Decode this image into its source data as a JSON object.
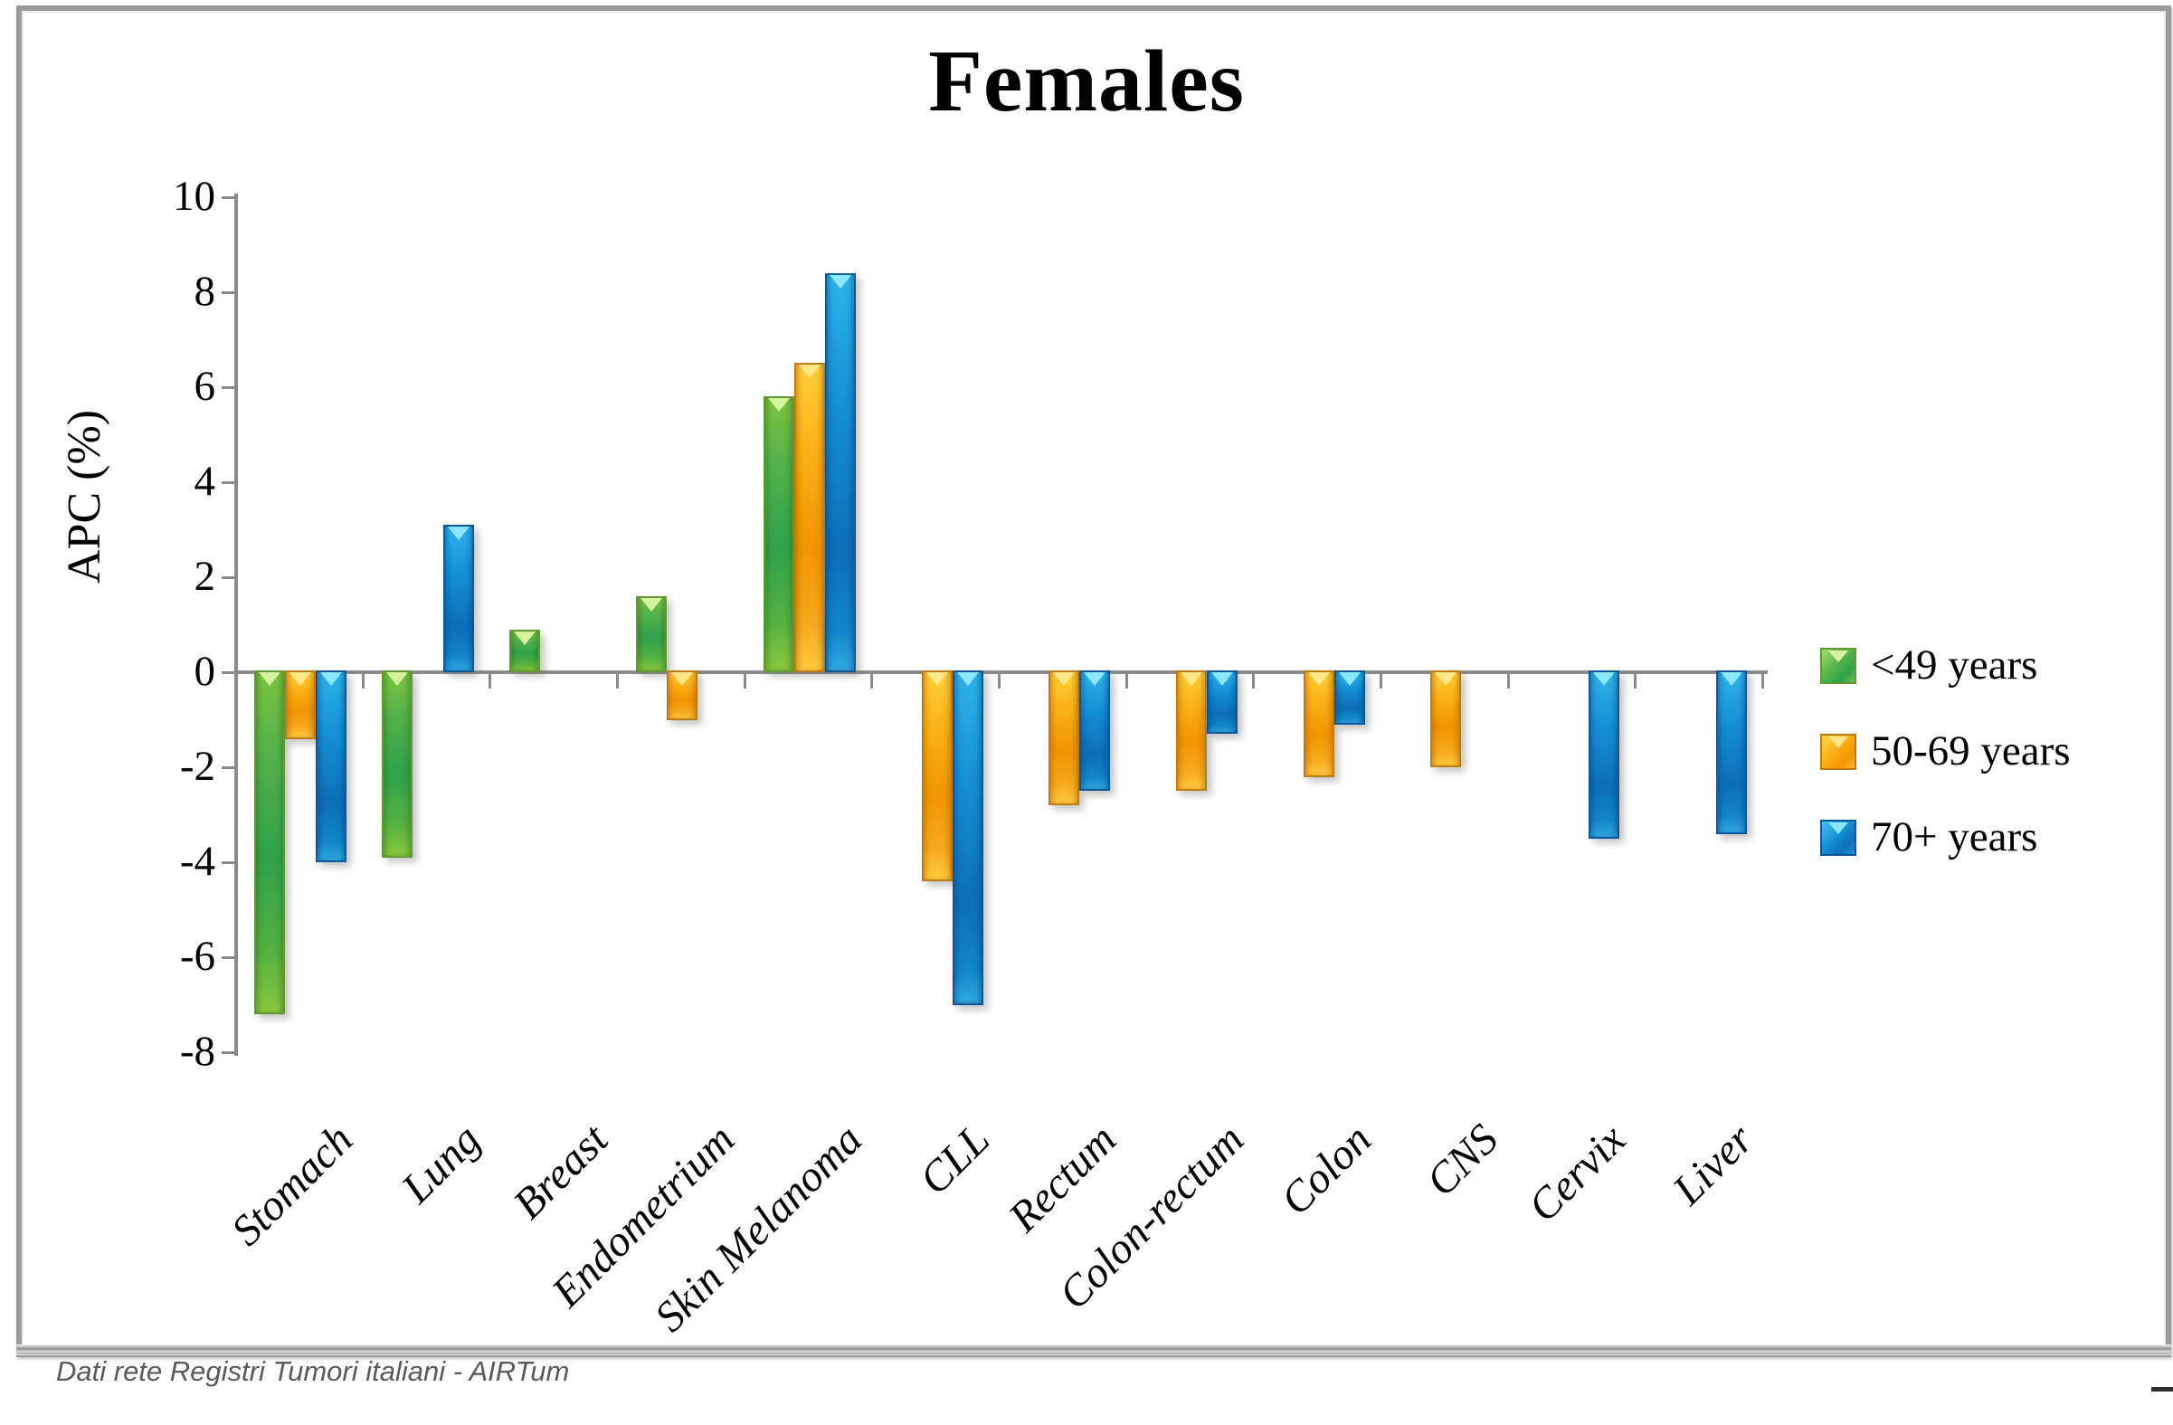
{
  "title": "Females",
  "y_axis_label": "APC (%)",
  "caption": "Dati rete Registri Tumori italiani - AIRTum",
  "colors": {
    "green": "#56b44a",
    "orange": "#fbae12",
    "blue": "#1590d5",
    "axis_gray": "#8a8a8a"
  },
  "legend": {
    "position": "right",
    "items": [
      {
        "label": "<49 years",
        "color": "#56b44a"
      },
      {
        "label": "50-69 years",
        "color": "#fbae12"
      },
      {
        "label": "70+ years",
        "color": "#1590d5"
      }
    ]
  },
  "chart_data": {
    "type": "bar",
    "title": "Females",
    "xlabel": "",
    "ylabel": "APC (%)",
    "ylim": [
      -8,
      10
    ],
    "yticks": [
      10,
      8,
      6,
      4,
      2,
      0,
      -2,
      -4,
      -6,
      -8
    ],
    "grid": false,
    "legend_position": "right",
    "bar_style": "3d-glossy",
    "categories": [
      "Stomach",
      "Lung",
      "Breast",
      "Endometrium",
      "Skin Melanoma",
      "CLL",
      "Rectum",
      "Colon-rectum",
      "Colon",
      "CNS",
      "Cervix",
      "Liver"
    ],
    "series": [
      {
        "name": "<49 years",
        "color": "#56b44a",
        "values": [
          -7.2,
          -3.9,
          0.9,
          1.6,
          5.8,
          null,
          null,
          null,
          null,
          null,
          null,
          null
        ]
      },
      {
        "name": "50-69 years",
        "color": "#fbae12",
        "values": [
          -1.4,
          null,
          null,
          -1.0,
          6.5,
          -4.4,
          -2.8,
          -2.5,
          -2.2,
          -2.0,
          null,
          null
        ]
      },
      {
        "name": "70+ years",
        "color": "#1590d5",
        "values": [
          -4.0,
          3.1,
          null,
          null,
          8.4,
          -7.0,
          -2.5,
          -1.3,
          -1.1,
          null,
          -3.5,
          -3.4
        ]
      }
    ]
  }
}
